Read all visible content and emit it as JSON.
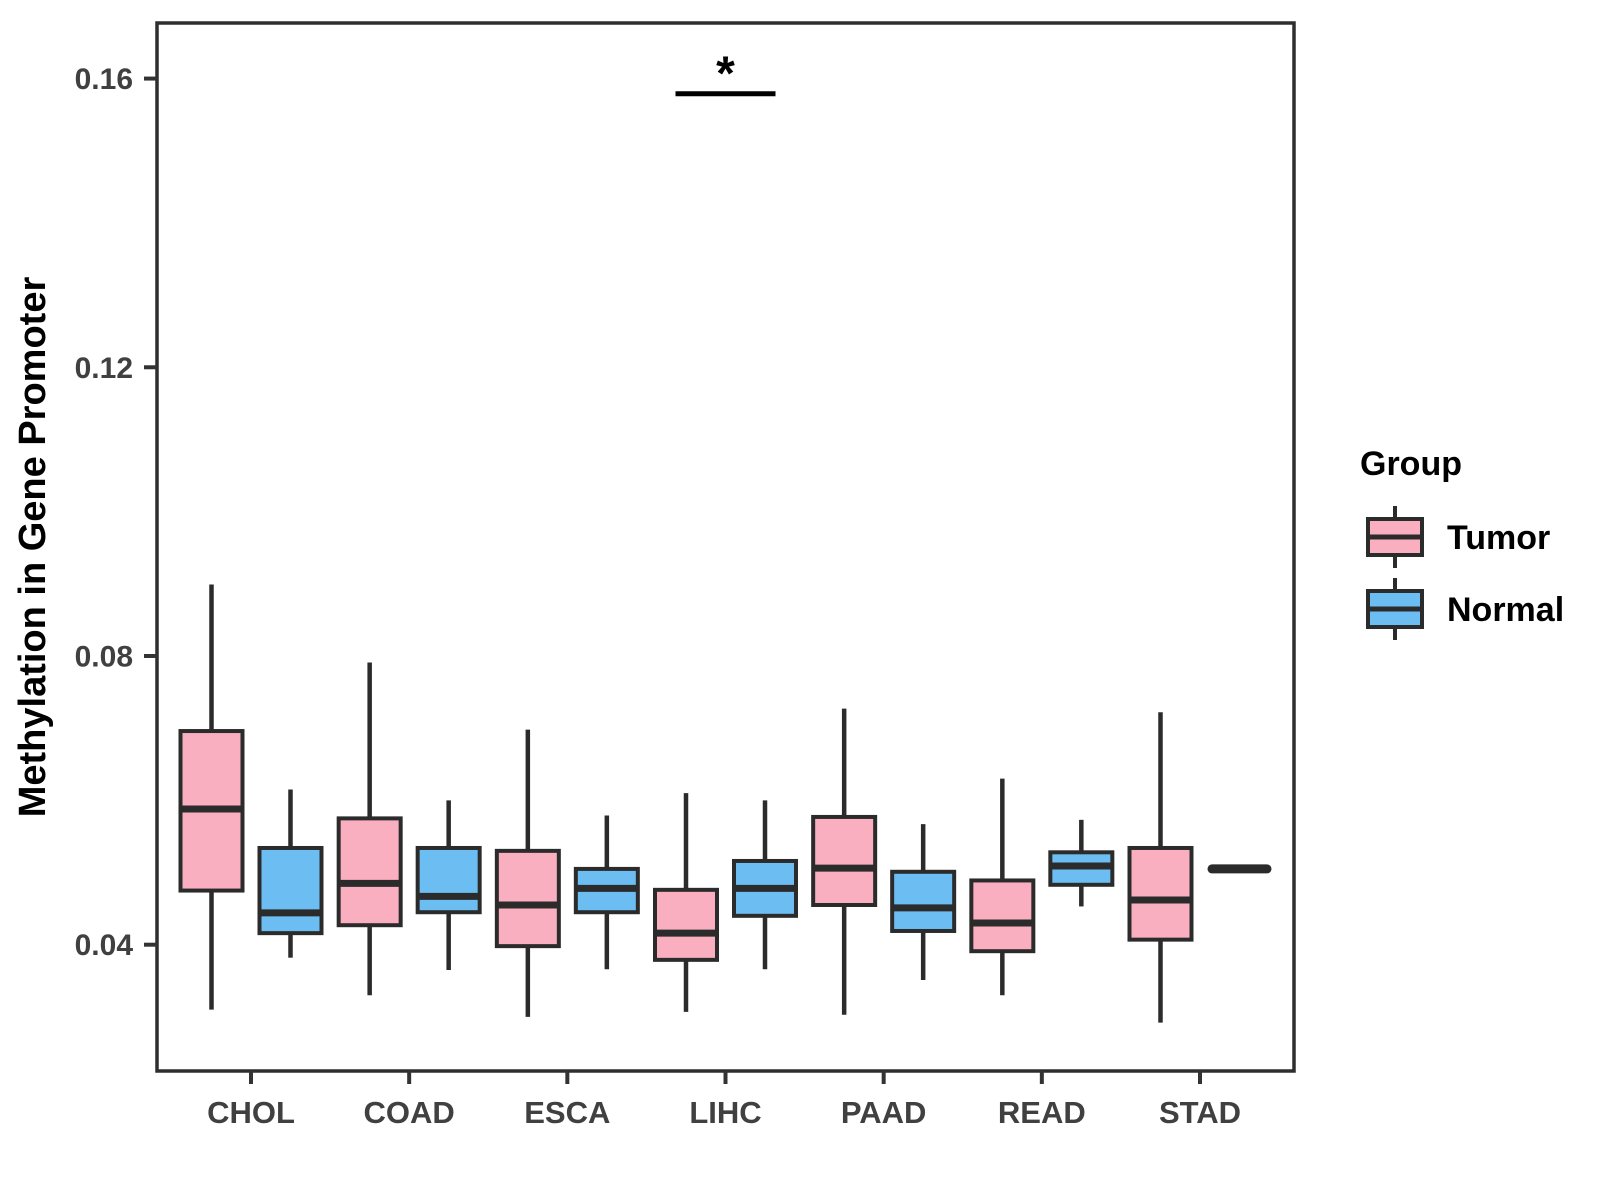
{
  "chart_data": {
    "type": "boxplot",
    "title": "",
    "xlabel": "",
    "ylabel": "Methylation in Gene Promoter",
    "categories": [
      "CHOL",
      "COAD",
      "ESCA",
      "LIHC",
      "PAAD",
      "READ",
      "STAD"
    ],
    "yticks": [
      0.04,
      0.08,
      0.12,
      0.16
    ],
    "ylim": [
      0.0225,
      0.1677
    ],
    "grid": false,
    "legend": {
      "title": "Group",
      "position": "right",
      "items": [
        "Tumor",
        "Normal"
      ]
    },
    "series": [
      {
        "name": "Tumor",
        "fill": "#FAAFC1",
        "boxes": [
          {
            "lo": 0.031,
            "q1": 0.0475,
            "med": 0.0588,
            "q3": 0.0696,
            "hi": 0.0899
          },
          {
            "lo": 0.033,
            "q1": 0.0427,
            "med": 0.0485,
            "q3": 0.0575,
            "hi": 0.0791
          },
          {
            "lo": 0.03,
            "q1": 0.0398,
            "med": 0.0455,
            "q3": 0.053,
            "hi": 0.0698
          },
          {
            "lo": 0.0307,
            "q1": 0.0379,
            "med": 0.0416,
            "q3": 0.0476,
            "hi": 0.061
          },
          {
            "lo": 0.0303,
            "q1": 0.0455,
            "med": 0.0506,
            "q3": 0.0577,
            "hi": 0.0727
          },
          {
            "lo": 0.033,
            "q1": 0.0391,
            "med": 0.043,
            "q3": 0.0489,
            "hi": 0.063
          },
          {
            "lo": 0.0292,
            "q1": 0.0407,
            "med": 0.0462,
            "q3": 0.0534,
            "hi": 0.0722
          }
        ]
      },
      {
        "name": "Normal",
        "fill": "#6CBEF2",
        "boxes": [
          {
            "lo": 0.0382,
            "q1": 0.0416,
            "med": 0.0444,
            "q3": 0.0534,
            "hi": 0.0615
          },
          {
            "lo": 0.0365,
            "q1": 0.0445,
            "med": 0.0467,
            "q3": 0.0534,
            "hi": 0.06
          },
          {
            "lo": 0.0366,
            "q1": 0.0445,
            "med": 0.0478,
            "q3": 0.0505,
            "hi": 0.0579
          },
          {
            "lo": 0.0366,
            "q1": 0.044,
            "med": 0.0478,
            "q3": 0.0516,
            "hi": 0.06
          },
          {
            "lo": 0.0351,
            "q1": 0.0419,
            "med": 0.0451,
            "q3": 0.0501,
            "hi": 0.0567
          },
          {
            "lo": 0.0453,
            "q1": 0.0483,
            "med": 0.0509,
            "q3": 0.0528,
            "hi": 0.0573
          },
          {
            "lo": 0.0505,
            "q1": 0.0505,
            "med": 0.0505,
            "q3": 0.0505,
            "hi": 0.0505
          }
        ]
      }
    ],
    "annotations": [
      {
        "type": "significance",
        "category": "LIHC",
        "label": "*",
        "bar_y": 0.1579
      }
    ],
    "style": {
      "stroke": "#2B2B2B",
      "panel_border": "#2E2E2E",
      "tick_mark_color": "#333333",
      "tick_label_color": "#404040",
      "axis_title_color": "#000000",
      "legend_text_color": "#000000",
      "background": "#FFFFFF"
    }
  }
}
